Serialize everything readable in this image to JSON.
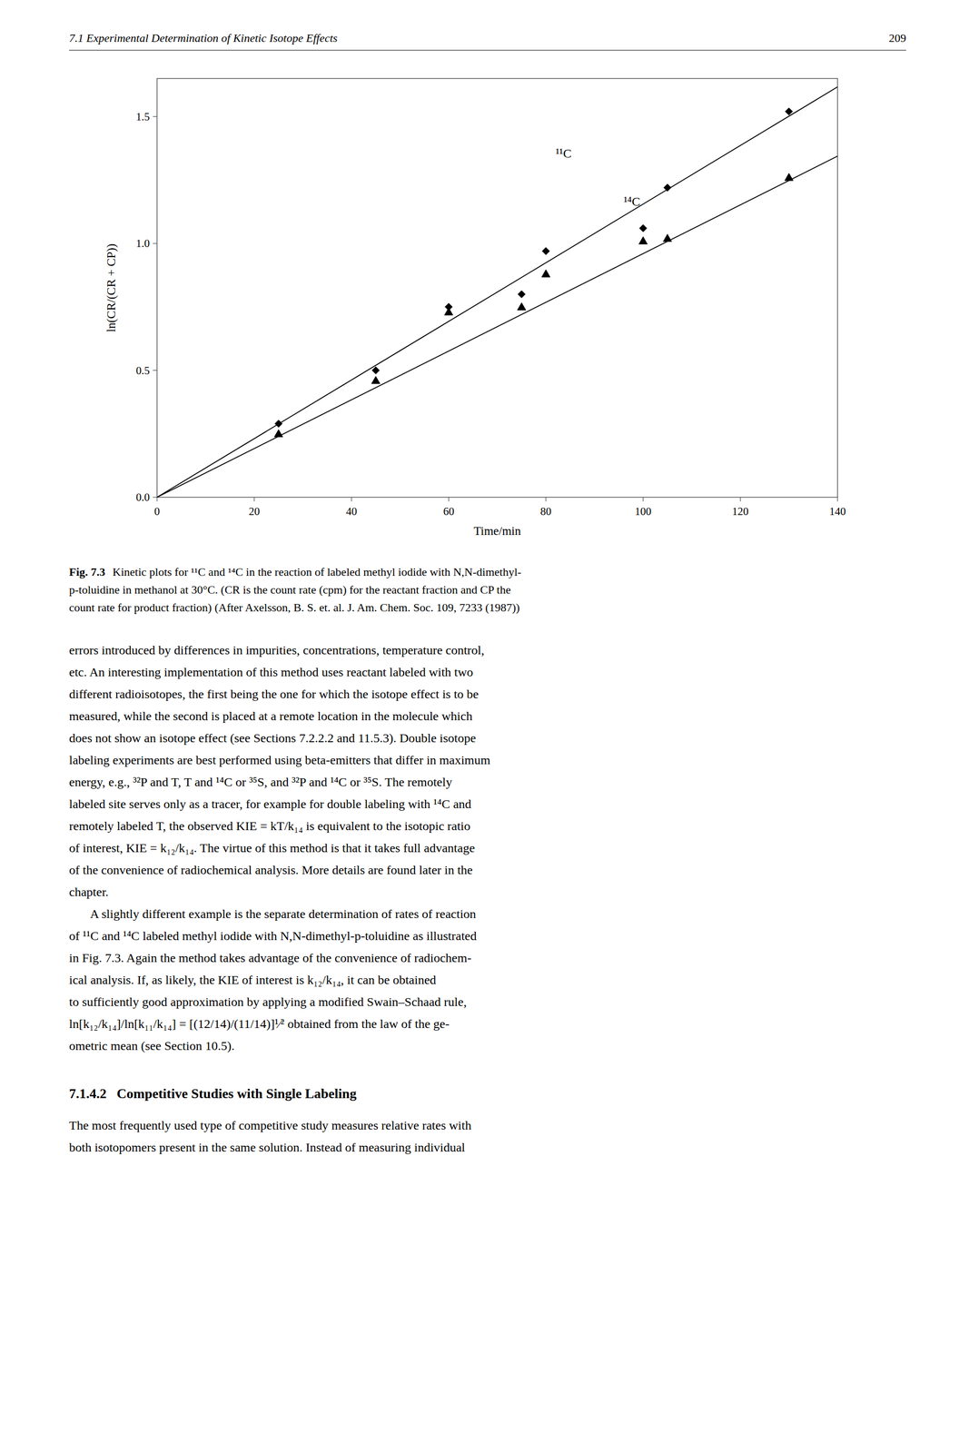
{
  "chart_data": {
    "type": "scatter",
    "x_label": "Time/min",
    "y_label": "ln(CR/(CR + CP))",
    "xlim": [
      0,
      140
    ],
    "ylim": [
      0.0,
      1.65
    ],
    "xticks": [
      0,
      20,
      40,
      60,
      80,
      100,
      120,
      140
    ],
    "yticks": [
      {
        "value": 0.0,
        "label": "0.0"
      },
      0.5,
      {
        "value": 1.0,
        "label": "1.0"
      },
      1.5
    ],
    "series": [
      {
        "type": "scatter",
        "marker": "diamond",
        "color": "#000000",
        "x": [
          25,
          45,
          60,
          75,
          80,
          100,
          105,
          130
        ],
        "values": [
          0.29,
          0.5,
          0.75,
          0.8,
          0.97,
          1.06,
          1.22,
          1.52
        ]
      },
      {
        "type": "scatter",
        "marker": "triangle",
        "color": "#000000",
        "x": [
          25,
          45,
          60,
          75,
          80,
          100,
          105,
          130
        ],
        "values": [
          0.25,
          0.46,
          0.73,
          0.75,
          0.88,
          1.01,
          1.02,
          1.26
        ]
      },
      {
        "type": "line",
        "line_style": "solid",
        "color": "#000000",
        "x": [
          0,
          140
        ],
        "values": [
          0,
          1.617
        ]
      },
      {
        "type": "line",
        "line_style": "solid",
        "color": "#000000",
        "x": [
          0,
          140
        ],
        "values": [
          0,
          1.344
        ]
      }
    ],
    "annotations": [
      {
        "text": "¹¹C",
        "x": 82,
        "y": 1.33
      },
      {
        "text": "¹⁴C",
        "x": 96,
        "y": 1.14
      }
    ]
  },
  "page": {
    "header_left": "7.1 Experimental Determination of Kinetic Isotope Effects",
    "header_right": "209",
    "caption_label": "Fig. 7.3",
    "caption": [
      "Kinetic plots for ¹¹C and ¹⁴C in the reaction of labeled methyl iodide with N,N-dimethyl-",
      "p-toluidine in methanol at 30°C. (CR is the count rate (cpm) for the reactant fraction and CP the",
      "count rate for product fraction) (After Axelsson, B. S. et. al. J. Am. Chem. Soc. 109, 7233 (1987))"
    ],
    "paragraphs": [
      [
        "errors introduced by differences in impurities, concentrations, temperature control,",
        "etc. An interesting implementation of this method uses reactant labeled with two",
        "different radioisotopes, the first being the one for which the isotope effect is to be",
        "measured, while the second is placed at a remote location in the molecule which",
        "does not show an isotope effect (see Sections 7.2.2.2 and 11.5.3). Double isotope",
        "labeling experiments are best performed using beta-emitters that differ in maximum",
        "energy, e.g., ³²P and T, T and ¹⁴C or ³⁵S, and ³²P and ¹⁴C or ³⁵S. The remotely",
        "labeled site serves only as a tracer, for example for double labeling with ¹⁴C and",
        "remotely labeled T, the observed KIE = kT/k₁₄ is equivalent to the isotopic ratio",
        "of interest, KIE = k₁₂/k₁₄. The virtue of this method is that it takes full advantage",
        "of the convenience of radiochemical analysis. More details are found later in the",
        "chapter."
      ],
      [
        "A slightly different example is the separate determination of rates of reaction",
        "of ¹¹C and ¹⁴C labeled methyl iodide with N,N-dimethyl-p-toluidine as illustrated",
        "in Fig. 7.3. Again the method takes advantage of the convenience of radiochem-",
        "ical analysis. If, as likely, the KIE of interest is k₁₂/k₁₄, it can be obtained",
        "to sufficiently good approximation by applying a modified Swain–Schaad rule,",
        "ln[k₁₂/k₁₄]/ln[k₁₁/k₁₄] = [(12/14)/(11/14)]¹⁄² obtained from the law of the ge-",
        "ometric mean (see Section 10.5)."
      ]
    ],
    "heading": "7.1.4.2   Competitive Studies with Single Labeling",
    "paragraphs_after": [
      [
        "The most frequently used type of competitive study measures relative rates with",
        "both isotopomers present in the same solution. Instead of measuring individual"
      ]
    ]
  }
}
